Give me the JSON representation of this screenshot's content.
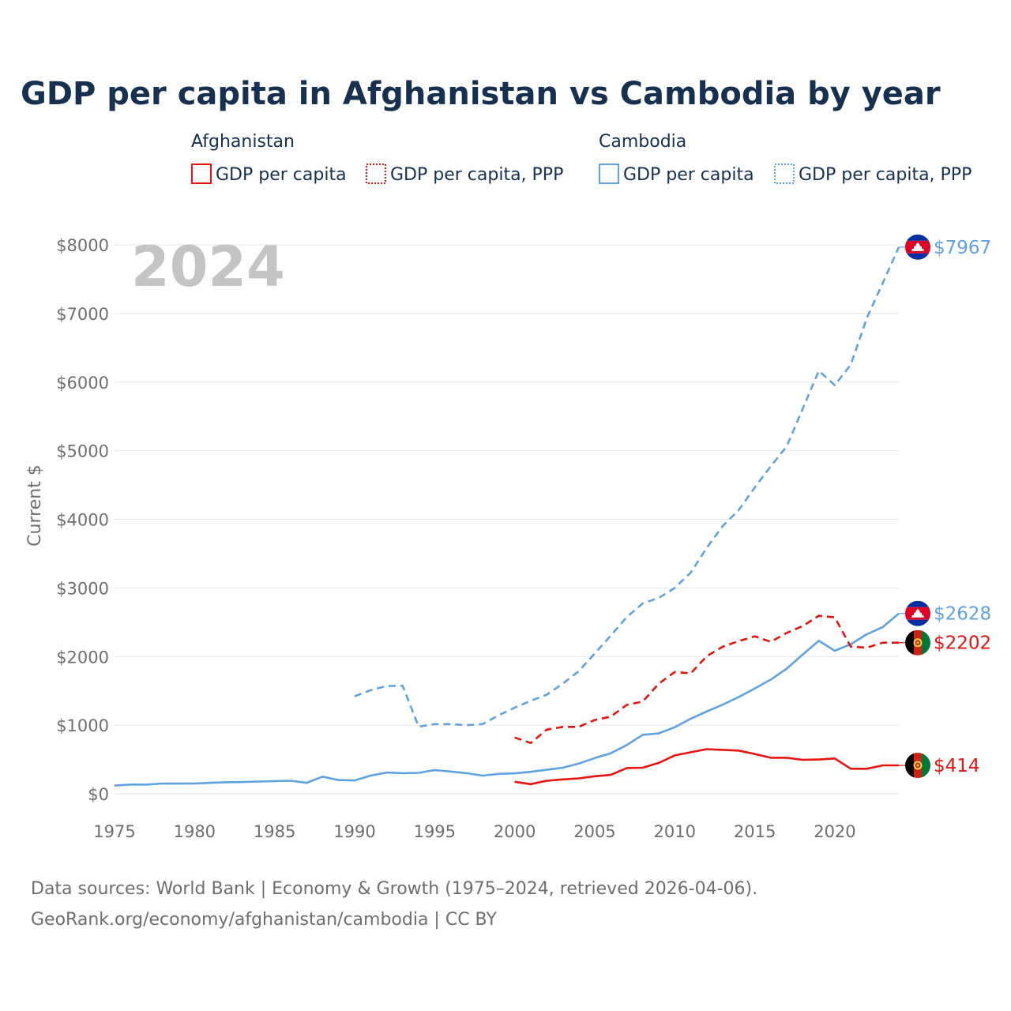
{
  "title": "GDP per capita in Afghanistan vs Cambodia by year",
  "year_label": "2024",
  "legend": {
    "groups": [
      {
        "country": "Afghanistan",
        "color": "#e8130f",
        "items": [
          "GDP per capita",
          "GDP per capita, PPP"
        ]
      },
      {
        "country": "Cambodia",
        "color": "#5fa2e0",
        "items": [
          "GDP per capita",
          "GDP per capita, PPP"
        ]
      }
    ]
  },
  "source_lines": [
    "Data sources: World Bank | Economy & Growth (1975–2024, retrieved 2026-04-06).",
    "GeoRank.org/economy/afghanistan/cambodia | CC BY"
  ],
  "colors": {
    "afghanistan": "#e8130f",
    "cambodia": "#5fa2e0",
    "grid": "#e6e6e6",
    "title": "#16304f"
  },
  "chart_data": {
    "type": "line",
    "title": "GDP per capita in Afghanistan vs Cambodia by year",
    "xlabel": "",
    "ylabel": "Current $",
    "xlim": [
      1975,
      2024
    ],
    "ylim": [
      0,
      8000
    ],
    "x_ticks": [
      1975,
      1980,
      1985,
      1990,
      1995,
      2000,
      2005,
      2010,
      2015,
      2020
    ],
    "x_tick_labels": [
      "1975",
      "1980",
      "1985",
      "1990",
      "1995",
      "2000",
      "2005",
      "2010",
      "2015",
      "2020"
    ],
    "y_ticks": [
      0,
      1000,
      2000,
      3000,
      4000,
      5000,
      6000,
      7000,
      8000
    ],
    "y_tick_labels": [
      "$0",
      "$1000",
      "$2000",
      "$3000",
      "$4000",
      "$5000",
      "$6000",
      "$7000",
      "$8000"
    ],
    "series": [
      {
        "name": "Cambodia GDP per capita, PPP",
        "country": "cambodia",
        "style": "dashed",
        "end_label": "$7967",
        "points": [
          [
            1990,
            1420
          ],
          [
            1991,
            1510
          ],
          [
            1992,
            1570
          ],
          [
            1993,
            1575
          ],
          [
            1994,
            980
          ],
          [
            1995,
            1015
          ],
          [
            1996,
            1015
          ],
          [
            1997,
            1000
          ],
          [
            1998,
            1015
          ],
          [
            1999,
            1145
          ],
          [
            2000,
            1255
          ],
          [
            2001,
            1355
          ],
          [
            2002,
            1445
          ],
          [
            2003,
            1605
          ],
          [
            2004,
            1785
          ],
          [
            2005,
            2045
          ],
          [
            2006,
            2305
          ],
          [
            2007,
            2575
          ],
          [
            2008,
            2775
          ],
          [
            2009,
            2855
          ],
          [
            2010,
            3000
          ],
          [
            2011,
            3225
          ],
          [
            2012,
            3585
          ],
          [
            2013,
            3905
          ],
          [
            2014,
            4135
          ],
          [
            2015,
            4465
          ],
          [
            2016,
            4775
          ],
          [
            2017,
            5065
          ],
          [
            2018,
            5615
          ],
          [
            2019,
            6165
          ],
          [
            2020,
            5955
          ],
          [
            2021,
            6255
          ],
          [
            2022,
            6935
          ],
          [
            2023,
            7445
          ],
          [
            2024,
            7967
          ]
        ]
      },
      {
        "name": "Cambodia GDP per capita",
        "country": "cambodia",
        "style": "solid",
        "end_label": "$2628",
        "points": [
          [
            1975,
            120
          ],
          [
            1976,
            135
          ],
          [
            1977,
            135
          ],
          [
            1978,
            150
          ],
          [
            1979,
            148
          ],
          [
            1980,
            150
          ],
          [
            1981,
            160
          ],
          [
            1982,
            168
          ],
          [
            1983,
            172
          ],
          [
            1984,
            178
          ],
          [
            1985,
            185
          ],
          [
            1986,
            190
          ],
          [
            1987,
            160
          ],
          [
            1988,
            250
          ],
          [
            1989,
            200
          ],
          [
            1990,
            195
          ],
          [
            1991,
            265
          ],
          [
            1992,
            310
          ],
          [
            1993,
            300
          ],
          [
            1994,
            305
          ],
          [
            1995,
            345
          ],
          [
            1996,
            325
          ],
          [
            1997,
            300
          ],
          [
            1998,
            265
          ],
          [
            1999,
            290
          ],
          [
            2000,
            298
          ],
          [
            2001,
            320
          ],
          [
            2002,
            350
          ],
          [
            2003,
            380
          ],
          [
            2004,
            440
          ],
          [
            2005,
            520
          ],
          [
            2006,
            590
          ],
          [
            2007,
            710
          ],
          [
            2008,
            860
          ],
          [
            2009,
            880
          ],
          [
            2010,
            970
          ],
          [
            2011,
            1095
          ],
          [
            2012,
            1200
          ],
          [
            2013,
            1300
          ],
          [
            2014,
            1410
          ],
          [
            2015,
            1535
          ],
          [
            2016,
            1665
          ],
          [
            2017,
            1825
          ],
          [
            2018,
            2030
          ],
          [
            2019,
            2230
          ],
          [
            2020,
            2085
          ],
          [
            2021,
            2180
          ],
          [
            2022,
            2325
          ],
          [
            2023,
            2430
          ],
          [
            2024,
            2628
          ]
        ]
      },
      {
        "name": "Afghanistan GDP per capita, PPP",
        "country": "afghanistan",
        "style": "dashed",
        "end_label": "$2202",
        "points": [
          [
            2000,
            820
          ],
          [
            2001,
            740
          ],
          [
            2002,
            935
          ],
          [
            2003,
            975
          ],
          [
            2004,
            975
          ],
          [
            2005,
            1075
          ],
          [
            2006,
            1125
          ],
          [
            2007,
            1295
          ],
          [
            2008,
            1345
          ],
          [
            2009,
            1605
          ],
          [
            2010,
            1775
          ],
          [
            2011,
            1755
          ],
          [
            2012,
            2005
          ],
          [
            2013,
            2145
          ],
          [
            2014,
            2225
          ],
          [
            2015,
            2295
          ],
          [
            2016,
            2215
          ],
          [
            2017,
            2345
          ],
          [
            2018,
            2445
          ],
          [
            2019,
            2595
          ],
          [
            2020,
            2570
          ],
          [
            2021,
            2145
          ],
          [
            2022,
            2130
          ],
          [
            2023,
            2202
          ],
          [
            2024,
            2202
          ]
        ]
      },
      {
        "name": "Afghanistan GDP per capita",
        "country": "afghanistan",
        "style": "solid",
        "end_label": "$414",
        "points": [
          [
            2000,
            175
          ],
          [
            2001,
            140
          ],
          [
            2002,
            190
          ],
          [
            2003,
            210
          ],
          [
            2004,
            225
          ],
          [
            2005,
            255
          ],
          [
            2006,
            275
          ],
          [
            2007,
            375
          ],
          [
            2008,
            380
          ],
          [
            2009,
            450
          ],
          [
            2010,
            560
          ],
          [
            2011,
            605
          ],
          [
            2012,
            650
          ],
          [
            2013,
            640
          ],
          [
            2014,
            630
          ],
          [
            2015,
            580
          ],
          [
            2016,
            525
          ],
          [
            2017,
            525
          ],
          [
            2018,
            495
          ],
          [
            2019,
            500
          ],
          [
            2020,
            515
          ],
          [
            2021,
            365
          ],
          [
            2022,
            365
          ],
          [
            2023,
            414
          ],
          [
            2024,
            414
          ]
        ]
      }
    ]
  }
}
